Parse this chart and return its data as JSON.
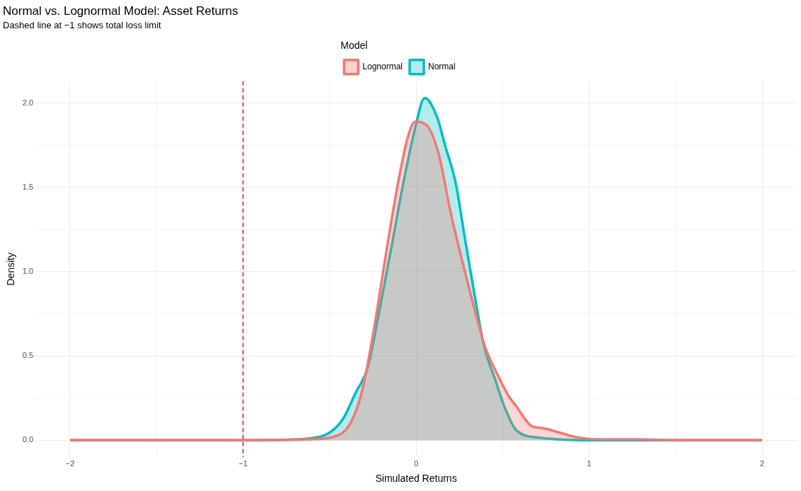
{
  "chart_data": {
    "type": "area",
    "title": "Normal vs. Lognormal Model: Asset Returns",
    "subtitle": "Dashed line at −1 shows total loss limit",
    "xlabel": "Simulated Returns",
    "ylabel": "Density",
    "legend_title": "Model",
    "legend": "top",
    "grid": true,
    "line_style": "solid",
    "xlim": [
      -2.2,
      2.2
    ],
    "ylim": [
      -0.1,
      2.13
    ],
    "xticks": [
      {
        "value": -2,
        "label": "−2"
      },
      {
        "value": -1.5,
        "label": null
      },
      {
        "value": -1,
        "label": "−1"
      },
      {
        "value": -0.5,
        "label": null
      },
      0,
      {
        "value": 0.5,
        "label": null
      },
      1,
      {
        "value": 1.5,
        "label": null
      },
      2
    ],
    "yticks": [
      {
        "value": 0,
        "label": "0.0"
      },
      {
        "value": 0.25,
        "label": null
      },
      0.5,
      {
        "value": 0.75,
        "label": null
      },
      {
        "value": 1,
        "label": "1.0"
      },
      {
        "value": 1.25,
        "label": null
      },
      1.5,
      {
        "value": 1.75,
        "label": null
      },
      {
        "value": 2,
        "label": "2.0"
      }
    ],
    "ref_lines": [
      {
        "axis": "x",
        "value": -1,
        "color": "#e31a1c",
        "line_style": "dashed"
      }
    ],
    "series": [
      {
        "name": "Lognormal",
        "color": "#f8766d",
        "x": [
          -2,
          -1.5,
          -1,
          -0.8,
          -0.62,
          -0.49,
          -0.38,
          -0.31,
          -0.24,
          -0.17,
          -0.1,
          -0.047,
          -0.006,
          0.06,
          0.13,
          0.2,
          0.27,
          0.34,
          0.4,
          0.47,
          0.53,
          0.58,
          0.665,
          0.73,
          0.83,
          0.93,
          1.06,
          1.27,
          1.5,
          2
        ],
        "values": [
          0,
          0,
          0,
          0.001,
          0.005,
          0.017,
          0.1,
          0.3,
          0.68,
          1.13,
          1.55,
          1.8,
          1.89,
          1.87,
          1.7,
          1.35,
          1.05,
          0.77,
          0.55,
          0.39,
          0.27,
          0.2,
          0.086,
          0.072,
          0.045,
          0.017,
          0.005,
          0.005,
          0,
          0
        ]
      },
      {
        "name": "Normal",
        "color": "#00bfc4",
        "x": [
          -2,
          -1.5,
          -1,
          -0.8,
          -0.62,
          -0.5,
          -0.42,
          -0.35,
          -0.28,
          -0.21,
          -0.14,
          -0.075,
          -0.006,
          0.05,
          0.12,
          0.17,
          0.23,
          0.28,
          0.34,
          0.39,
          0.46,
          0.51,
          0.58,
          0.72,
          0.86,
          1,
          1.5,
          2
        ],
        "values": [
          0,
          0,
          0,
          0.002,
          0.01,
          0.045,
          0.13,
          0.28,
          0.43,
          0.78,
          1.16,
          1.52,
          1.85,
          2.03,
          1.92,
          1.74,
          1.52,
          1.21,
          0.85,
          0.57,
          0.35,
          0.2,
          0.058,
          0.014,
          0.003,
          0,
          0,
          0
        ]
      }
    ]
  }
}
